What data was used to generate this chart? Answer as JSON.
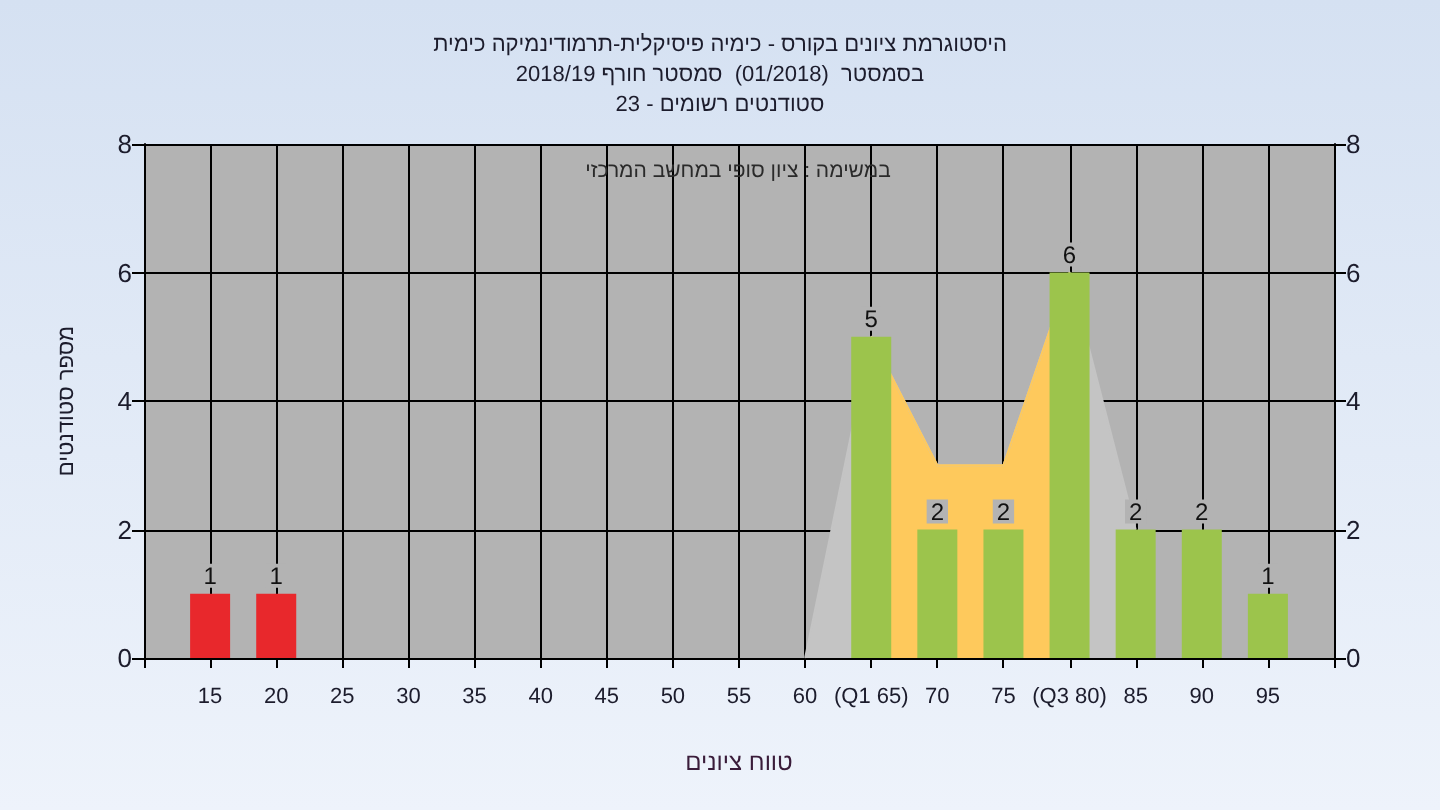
{
  "chart_data": {
    "type": "bar",
    "title": "היסטוגרמת ציונים בקורס - כימיה פיסיקלית-תרמודינמיקה כימית\nבסמסטר  (01/2018)  סמסטר חורף 2018/19\nסטודנטים רשומים - 23",
    "subtitle": "במשימה : ציון סופי במחשב המרכזי",
    "xlabel": "טווח ציונים",
    "ylabel": "מספר סטודנטים",
    "x": [
      15,
      20,
      25,
      30,
      35,
      40,
      45,
      50,
      55,
      60,
      65,
      70,
      75,
      80,
      85,
      90,
      95
    ],
    "xlim": [
      10,
      100
    ],
    "xticks": [
      {
        "value": 10,
        "label": null
      },
      15,
      20,
      25,
      30,
      35,
      40,
      45,
      50,
      55,
      60,
      {
        "value": 65,
        "label": "(Q1 65)"
      },
      70,
      75,
      {
        "value": 80,
        "label": "(Q3 80)"
      },
      85,
      90,
      95,
      {
        "value": 100,
        "label": null
      }
    ],
    "ylim": [
      0,
      8
    ],
    "yticks": [
      0,
      2,
      4,
      6,
      8
    ],
    "y2lim": [
      0,
      8
    ],
    "y2ticks": [
      0,
      2,
      4,
      6,
      8
    ],
    "grid": true,
    "series": [
      {
        "type": "area",
        "x": [
          60,
          65,
          70,
          75,
          80,
          85
        ],
        "values": [
          0,
          5,
          3,
          3,
          6,
          2
        ],
        "color": "#c4c4c4"
      },
      {
        "type": "area",
        "x": [
          65,
          70,
          75,
          80
        ],
        "values": [
          5,
          3,
          3,
          6
        ],
        "color": "#fec95c"
      },
      {
        "values": [
          1,
          1,
          0,
          0,
          0,
          0,
          0,
          0,
          0,
          0,
          5,
          2,
          2,
          6,
          2,
          2,
          1
        ],
        "value_labels": [
          "1",
          "1",
          null,
          null,
          null,
          null,
          null,
          null,
          null,
          null,
          "5",
          "2",
          "2",
          "6",
          "2",
          "2",
          "1"
        ],
        "colors": [
          "#e8282c",
          "#e8282c",
          "#9cc44c",
          "#9cc44c",
          "#9cc44c",
          "#9cc44c",
          "#9cc44c",
          "#9cc44c",
          "#9cc44c",
          "#9cc44c",
          "#9cc44c",
          "#9cc44c",
          "#9cc44c",
          "#9cc44c",
          "#9cc44c",
          "#9cc44c",
          "#9cc44c"
        ]
      }
    ]
  }
}
